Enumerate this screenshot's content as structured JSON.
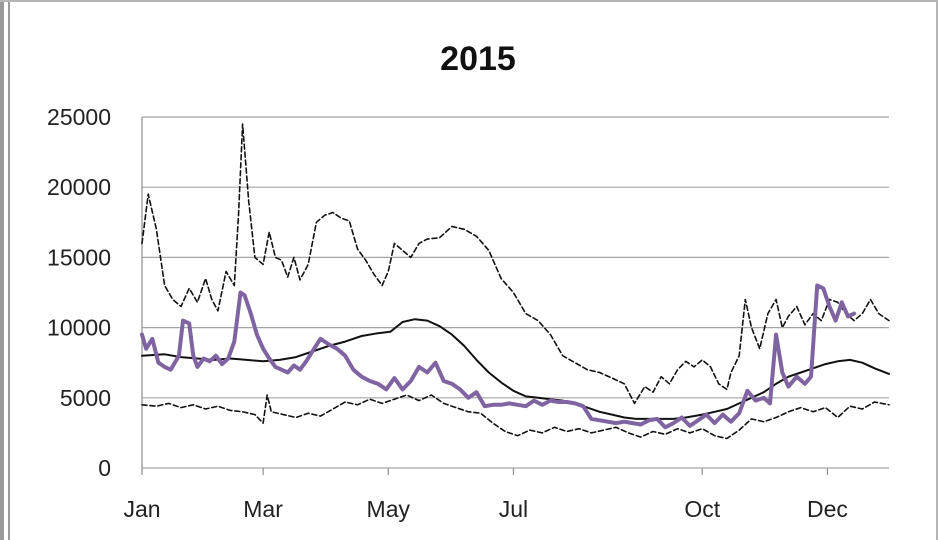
{
  "chart_data": {
    "type": "line",
    "title": "2015",
    "xlabel": "",
    "ylabel": "",
    "x_tick_labels": [
      "Jan",
      "Mar",
      "May",
      "Jul",
      "Oct",
      "Dec"
    ],
    "x_tick_days": [
      1,
      60,
      121,
      182,
      274,
      335
    ],
    "y_ticks": [
      0,
      5000,
      10000,
      15000,
      20000,
      25000
    ],
    "ylim": [
      0,
      25000
    ],
    "xlim": [
      1,
      365
    ],
    "grid": "horizontal",
    "legend": "none",
    "series": [
      {
        "style": "dashed-upper",
        "color": "#111111",
        "points": [
          [
            1,
            16000
          ],
          [
            4,
            19500
          ],
          [
            8,
            17000
          ],
          [
            12,
            13000
          ],
          [
            16,
            12000
          ],
          [
            20,
            11500
          ],
          [
            24,
            12800
          ],
          [
            28,
            11800
          ],
          [
            32,
            13500
          ],
          [
            35,
            12000
          ],
          [
            38,
            11200
          ],
          [
            42,
            14000
          ],
          [
            46,
            13000
          ],
          [
            48,
            18000
          ],
          [
            50,
            24500
          ],
          [
            53,
            19000
          ],
          [
            56,
            15000
          ],
          [
            60,
            14500
          ],
          [
            63,
            16800
          ],
          [
            66,
            15000
          ],
          [
            69,
            14800
          ],
          [
            72,
            13600
          ],
          [
            75,
            15000
          ],
          [
            78,
            13400
          ],
          [
            82,
            14500
          ],
          [
            86,
            17500
          ],
          [
            90,
            18000
          ],
          [
            94,
            18200
          ],
          [
            98,
            17800
          ],
          [
            102,
            17600
          ],
          [
            106,
            15600
          ],
          [
            110,
            14800
          ],
          [
            114,
            13800
          ],
          [
            118,
            13000
          ],
          [
            121,
            14000
          ],
          [
            124,
            16000
          ],
          [
            128,
            15500
          ],
          [
            132,
            15000
          ],
          [
            136,
            16000
          ],
          [
            140,
            16300
          ],
          [
            146,
            16400
          ],
          [
            152,
            17200
          ],
          [
            158,
            17000
          ],
          [
            164,
            16500
          ],
          [
            170,
            15500
          ],
          [
            176,
            13500
          ],
          [
            182,
            12500
          ],
          [
            188,
            11000
          ],
          [
            194,
            10500
          ],
          [
            200,
            9500
          ],
          [
            206,
            8000
          ],
          [
            212,
            7500
          ],
          [
            218,
            7000
          ],
          [
            224,
            6800
          ],
          [
            230,
            6400
          ],
          [
            236,
            6000
          ],
          [
            241,
            4600
          ],
          [
            246,
            5800
          ],
          [
            250,
            5400
          ],
          [
            254,
            6500
          ],
          [
            258,
            6000
          ],
          [
            262,
            7000
          ],
          [
            266,
            7600
          ],
          [
            270,
            7200
          ],
          [
            274,
            7700
          ],
          [
            278,
            7200
          ],
          [
            282,
            6000
          ],
          [
            286,
            5600
          ],
          [
            288,
            6800
          ],
          [
            292,
            8000
          ],
          [
            295,
            12000
          ],
          [
            298,
            10000
          ],
          [
            302,
            8500
          ],
          [
            306,
            11000
          ],
          [
            310,
            12000
          ],
          [
            313,
            10000
          ],
          [
            316,
            10800
          ],
          [
            320,
            11500
          ],
          [
            324,
            10200
          ],
          [
            328,
            11000
          ],
          [
            332,
            10500
          ],
          [
            336,
            12000
          ],
          [
            340,
            11800
          ],
          [
            344,
            11000
          ],
          [
            348,
            10500
          ],
          [
            352,
            11000
          ],
          [
            356,
            12000
          ],
          [
            360,
            11000
          ],
          [
            365,
            10500
          ]
        ]
      },
      {
        "style": "solid-thin",
        "color": "#111111",
        "points": [
          [
            1,
            8000
          ],
          [
            12,
            8100
          ],
          [
            20,
            7900
          ],
          [
            28,
            7800
          ],
          [
            36,
            7700
          ],
          [
            44,
            7800
          ],
          [
            52,
            7700
          ],
          [
            60,
            7600
          ],
          [
            68,
            7700
          ],
          [
            76,
            7900
          ],
          [
            84,
            8300
          ],
          [
            92,
            8700
          ],
          [
            100,
            9000
          ],
          [
            108,
            9400
          ],
          [
            116,
            9600
          ],
          [
            122,
            9700
          ],
          [
            128,
            10400
          ],
          [
            134,
            10600
          ],
          [
            140,
            10500
          ],
          [
            146,
            10100
          ],
          [
            152,
            9500
          ],
          [
            158,
            8700
          ],
          [
            164,
            7700
          ],
          [
            170,
            6800
          ],
          [
            176,
            6100
          ],
          [
            182,
            5500
          ],
          [
            188,
            5100
          ],
          [
            194,
            5000
          ],
          [
            200,
            4900
          ],
          [
            206,
            4800
          ],
          [
            212,
            4600
          ],
          [
            218,
            4300
          ],
          [
            224,
            4000
          ],
          [
            230,
            3800
          ],
          [
            236,
            3600
          ],
          [
            242,
            3500
          ],
          [
            248,
            3500
          ],
          [
            254,
            3500
          ],
          [
            260,
            3500
          ],
          [
            266,
            3600
          ],
          [
            274,
            3800
          ],
          [
            280,
            4000
          ],
          [
            286,
            4200
          ],
          [
            292,
            4600
          ],
          [
            298,
            5000
          ],
          [
            304,
            5400
          ],
          [
            310,
            6000
          ],
          [
            316,
            6500
          ],
          [
            322,
            6800
          ],
          [
            328,
            7100
          ],
          [
            334,
            7400
          ],
          [
            340,
            7600
          ],
          [
            346,
            7700
          ],
          [
            352,
            7500
          ],
          [
            358,
            7100
          ],
          [
            365,
            6700
          ]
        ]
      },
      {
        "style": "dashed-lower",
        "color": "#111111",
        "points": [
          [
            1,
            4500
          ],
          [
            8,
            4400
          ],
          [
            14,
            4600
          ],
          [
            20,
            4300
          ],
          [
            26,
            4500
          ],
          [
            32,
            4200
          ],
          [
            38,
            4400
          ],
          [
            44,
            4100
          ],
          [
            50,
            4000
          ],
          [
            56,
            3800
          ],
          [
            60,
            3200
          ],
          [
            62,
            5200
          ],
          [
            64,
            4000
          ],
          [
            70,
            3800
          ],
          [
            76,
            3600
          ],
          [
            82,
            3900
          ],
          [
            88,
            3700
          ],
          [
            94,
            4200
          ],
          [
            100,
            4700
          ],
          [
            106,
            4500
          ],
          [
            112,
            4900
          ],
          [
            118,
            4600
          ],
          [
            124,
            4900
          ],
          [
            130,
            5200
          ],
          [
            136,
            4800
          ],
          [
            142,
            5200
          ],
          [
            148,
            4600
          ],
          [
            154,
            4300
          ],
          [
            160,
            4000
          ],
          [
            166,
            3900
          ],
          [
            172,
            3200
          ],
          [
            178,
            2600
          ],
          [
            184,
            2300
          ],
          [
            190,
            2700
          ],
          [
            196,
            2500
          ],
          [
            202,
            2900
          ],
          [
            208,
            2600
          ],
          [
            214,
            2800
          ],
          [
            220,
            2500
          ],
          [
            226,
            2700
          ],
          [
            232,
            2900
          ],
          [
            238,
            2500
          ],
          [
            244,
            2200
          ],
          [
            250,
            2600
          ],
          [
            256,
            2400
          ],
          [
            262,
            2800
          ],
          [
            268,
            2500
          ],
          [
            274,
            2800
          ],
          [
            280,
            2300
          ],
          [
            286,
            2100
          ],
          [
            292,
            2700
          ],
          [
            298,
            3500
          ],
          [
            304,
            3300
          ],
          [
            310,
            3600
          ],
          [
            316,
            4000
          ],
          [
            322,
            4300
          ],
          [
            328,
            4000
          ],
          [
            334,
            4300
          ],
          [
            340,
            3600
          ],
          [
            346,
            4400
          ],
          [
            352,
            4200
          ],
          [
            358,
            4700
          ],
          [
            365,
            4500
          ]
        ]
      },
      {
        "style": "solid-thick",
        "color": "#8064a2",
        "points": [
          [
            1,
            9500
          ],
          [
            3,
            8500
          ],
          [
            6,
            9200
          ],
          [
            9,
            7500
          ],
          [
            12,
            7200
          ],
          [
            15,
            7000
          ],
          [
            17,
            7500
          ],
          [
            19,
            8000
          ],
          [
            21,
            10500
          ],
          [
            24,
            10300
          ],
          [
            26,
            8000
          ],
          [
            28,
            7200
          ],
          [
            31,
            7800
          ],
          [
            34,
            7600
          ],
          [
            37,
            8000
          ],
          [
            40,
            7400
          ],
          [
            43,
            7800
          ],
          [
            46,
            9000
          ],
          [
            49,
            12500
          ],
          [
            51,
            12300
          ],
          [
            54,
            11000
          ],
          [
            57,
            9500
          ],
          [
            60,
            8500
          ],
          [
            63,
            7800
          ],
          [
            66,
            7200
          ],
          [
            69,
            7000
          ],
          [
            72,
            6800
          ],
          [
            75,
            7300
          ],
          [
            78,
            7000
          ],
          [
            81,
            7600
          ],
          [
            84,
            8300
          ],
          [
            88,
            9200
          ],
          [
            92,
            8800
          ],
          [
            96,
            8500
          ],
          [
            100,
            8000
          ],
          [
            104,
            7000
          ],
          [
            108,
            6500
          ],
          [
            112,
            6200
          ],
          [
            116,
            6000
          ],
          [
            120,
            5600
          ],
          [
            124,
            6400
          ],
          [
            128,
            5600
          ],
          [
            132,
            6200
          ],
          [
            136,
            7200
          ],
          [
            140,
            6800
          ],
          [
            144,
            7500
          ],
          [
            148,
            6200
          ],
          [
            152,
            6000
          ],
          [
            156,
            5600
          ],
          [
            160,
            5000
          ],
          [
            164,
            5400
          ],
          [
            168,
            4400
          ],
          [
            172,
            4500
          ],
          [
            176,
            4500
          ],
          [
            180,
            4600
          ],
          [
            184,
            4500
          ],
          [
            188,
            4400
          ],
          [
            192,
            4800
          ],
          [
            196,
            4500
          ],
          [
            200,
            4800
          ],
          [
            204,
            4700
          ],
          [
            208,
            4700
          ],
          [
            212,
            4600
          ],
          [
            216,
            4400
          ],
          [
            220,
            3500
          ],
          [
            224,
            3400
          ],
          [
            228,
            3300
          ],
          [
            232,
            3200
          ],
          [
            236,
            3300
          ],
          [
            240,
            3200
          ],
          [
            244,
            3100
          ],
          [
            248,
            3400
          ],
          [
            252,
            3500
          ],
          [
            256,
            2900
          ],
          [
            260,
            3200
          ],
          [
            264,
            3600
          ],
          [
            268,
            3000
          ],
          [
            272,
            3400
          ],
          [
            276,
            3800
          ],
          [
            280,
            3200
          ],
          [
            284,
            3800
          ],
          [
            288,
            3300
          ],
          [
            292,
            3900
          ],
          [
            296,
            5500
          ],
          [
            300,
            4800
          ],
          [
            304,
            5000
          ],
          [
            307,
            4600
          ],
          [
            310,
            9500
          ],
          [
            313,
            6800
          ],
          [
            316,
            5800
          ],
          [
            320,
            6500
          ],
          [
            324,
            6000
          ],
          [
            327,
            6500
          ],
          [
            330,
            13000
          ],
          [
            333,
            12800
          ],
          [
            336,
            11500
          ],
          [
            339,
            10500
          ],
          [
            342,
            11800
          ],
          [
            345,
            10800
          ],
          [
            348,
            11000
          ]
        ]
      }
    ]
  }
}
